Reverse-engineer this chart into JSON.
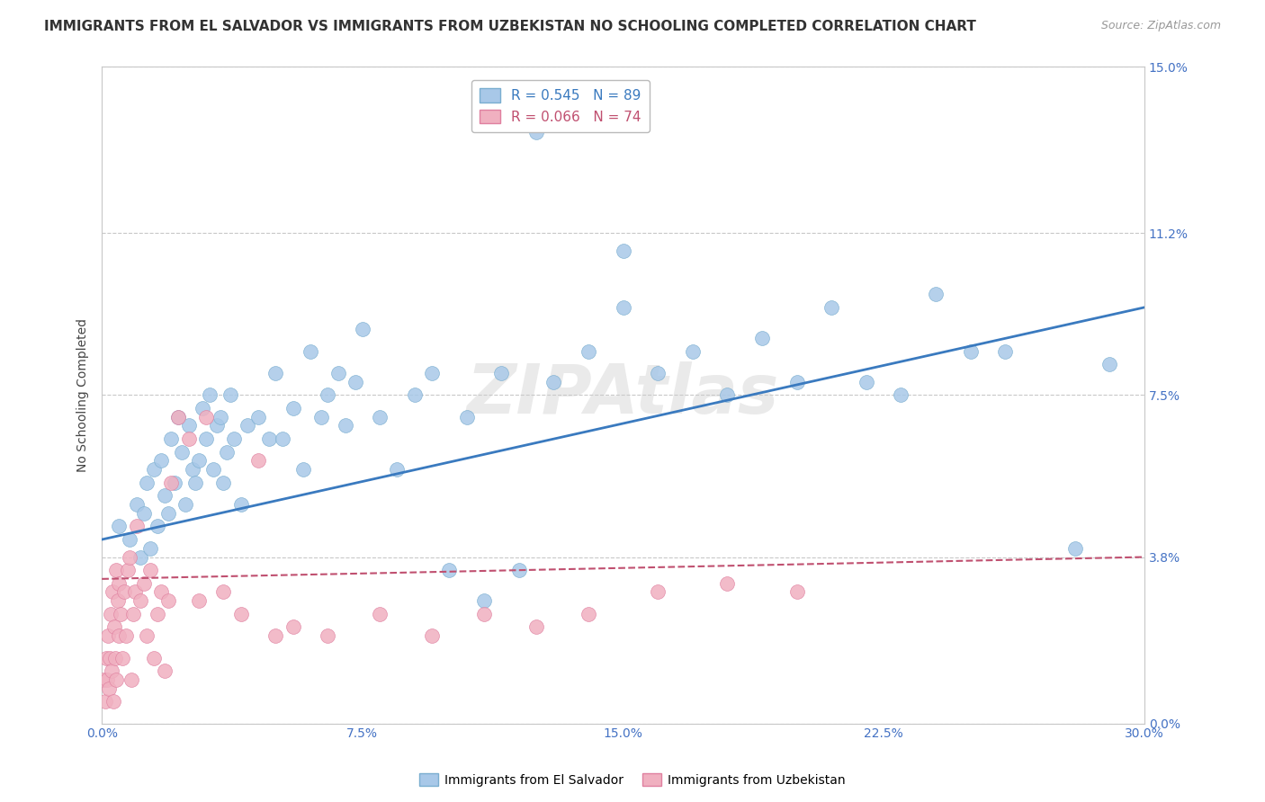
{
  "title": "IMMIGRANTS FROM EL SALVADOR VS IMMIGRANTS FROM UZBEKISTAN NO SCHOOLING COMPLETED CORRELATION CHART",
  "source": "Source: ZipAtlas.com",
  "xlabel_tick_vals": [
    0.0,
    7.5,
    15.0,
    22.5,
    30.0
  ],
  "xlabel_tick_labels": [
    "0.0%",
    "7.5%",
    "15.0%",
    "22.5%",
    "30.0%"
  ],
  "ylabel": "No Schooling Completed",
  "ylabel_tick_vals": [
    0.0,
    3.8,
    7.5,
    11.2,
    15.0
  ],
  "ylabel_tick_labels": [
    "0.0%",
    "3.8%",
    "7.5%",
    "11.2%",
    "15.0%"
  ],
  "xlim": [
    0.0,
    30.0
  ],
  "ylim": [
    0.0,
    15.0
  ],
  "legend1_r": "0.545",
  "legend1_n": "89",
  "legend2_r": "0.066",
  "legend2_n": "74",
  "blue_color": "#a8c8e8",
  "blue_edge_color": "#7aaed0",
  "pink_color": "#f0b0c0",
  "pink_edge_color": "#e080a0",
  "blue_line_color": "#3a7abf",
  "pink_line_color": "#c05070",
  "watermark": "ZIPAtlas",
  "blue_scatter_x": [
    0.5,
    0.8,
    1.0,
    1.1,
    1.2,
    1.3,
    1.4,
    1.5,
    1.6,
    1.7,
    1.8,
    1.9,
    2.0,
    2.1,
    2.2,
    2.3,
    2.4,
    2.5,
    2.6,
    2.7,
    2.8,
    2.9,
    3.0,
    3.1,
    3.2,
    3.3,
    3.4,
    3.5,
    3.6,
    3.7,
    3.8,
    4.0,
    4.2,
    4.5,
    4.8,
    5.0,
    5.2,
    5.5,
    5.8,
    6.0,
    6.3,
    6.5,
    6.8,
    7.0,
    7.3,
    7.5,
    8.0,
    8.5,
    9.0,
    9.5,
    10.0,
    10.5,
    11.0,
    11.5,
    12.0,
    13.0,
    14.0,
    15.0,
    16.0,
    17.0,
    18.0,
    19.0,
    20.0,
    21.0,
    22.0,
    23.0,
    24.0,
    25.0,
    26.0,
    28.0,
    29.0
  ],
  "blue_scatter_y": [
    4.5,
    4.2,
    5.0,
    3.8,
    4.8,
    5.5,
    4.0,
    5.8,
    4.5,
    6.0,
    5.2,
    4.8,
    6.5,
    5.5,
    7.0,
    6.2,
    5.0,
    6.8,
    5.8,
    5.5,
    6.0,
    7.2,
    6.5,
    7.5,
    5.8,
    6.8,
    7.0,
    5.5,
    6.2,
    7.5,
    6.5,
    5.0,
    6.8,
    7.0,
    6.5,
    8.0,
    6.5,
    7.2,
    5.8,
    8.5,
    7.0,
    7.5,
    8.0,
    6.8,
    7.8,
    9.0,
    7.0,
    5.8,
    7.5,
    8.0,
    3.5,
    7.0,
    2.8,
    8.0,
    3.5,
    7.8,
    8.5,
    9.5,
    8.0,
    8.5,
    7.5,
    8.8,
    7.8,
    9.5,
    7.8,
    7.5,
    9.8,
    8.5,
    8.5,
    4.0,
    8.2
  ],
  "blue_outlier1_x": 12.5,
  "blue_outlier1_y": 13.5,
  "blue_outlier2_x": 15.0,
  "blue_outlier2_y": 10.8,
  "pink_scatter_x": [
    0.05,
    0.1,
    0.12,
    0.15,
    0.18,
    0.2,
    0.22,
    0.25,
    0.28,
    0.3,
    0.32,
    0.35,
    0.38,
    0.4,
    0.42,
    0.45,
    0.48,
    0.5,
    0.55,
    0.6,
    0.65,
    0.7,
    0.75,
    0.8,
    0.85,
    0.9,
    0.95,
    1.0,
    1.1,
    1.2,
    1.3,
    1.4,
    1.5,
    1.6,
    1.7,
    1.8,
    1.9,
    2.0,
    2.2,
    2.5,
    2.8,
    3.0,
    3.5,
    4.0,
    4.5,
    5.0,
    5.5,
    6.5,
    8.0,
    9.5,
    11.0,
    12.5,
    14.0,
    16.0,
    18.0,
    20.0
  ],
  "pink_scatter_y": [
    1.0,
    0.5,
    1.5,
    1.0,
    2.0,
    0.8,
    1.5,
    2.5,
    1.2,
    3.0,
    0.5,
    2.2,
    1.5,
    3.5,
    1.0,
    2.8,
    2.0,
    3.2,
    2.5,
    1.5,
    3.0,
    2.0,
    3.5,
    3.8,
    1.0,
    2.5,
    3.0,
    4.5,
    2.8,
    3.2,
    2.0,
    3.5,
    1.5,
    2.5,
    3.0,
    1.2,
    2.8,
    5.5,
    7.0,
    6.5,
    2.8,
    7.0,
    3.0,
    2.5,
    6.0,
    2.0,
    2.2,
    2.0,
    2.5,
    2.0,
    2.5,
    2.2,
    2.5,
    3.0,
    3.2,
    3.0
  ],
  "pink_outlier_x": 1.8,
  "pink_outlier_y": 6.5,
  "blue_line_x0": 0.0,
  "blue_line_x1": 30.0,
  "blue_line_y0": 4.2,
  "blue_line_y1": 9.5,
  "pink_line_x0": 0.0,
  "pink_line_x1": 30.0,
  "pink_line_y0": 3.3,
  "pink_line_y1": 3.8,
  "grid_color": "#c8c8c8",
  "background_color": "#ffffff",
  "tick_color": "#4472c4",
  "title_fontsize": 11,
  "axis_fontsize": 10,
  "tick_fontsize": 10,
  "legend_entry1": "R = 0.545   N = 89",
  "legend_entry2": "R = 0.066   N = 74",
  "bottom_legend1": "Immigrants from El Salvador",
  "bottom_legend2": "Immigrants from Uzbekistan"
}
